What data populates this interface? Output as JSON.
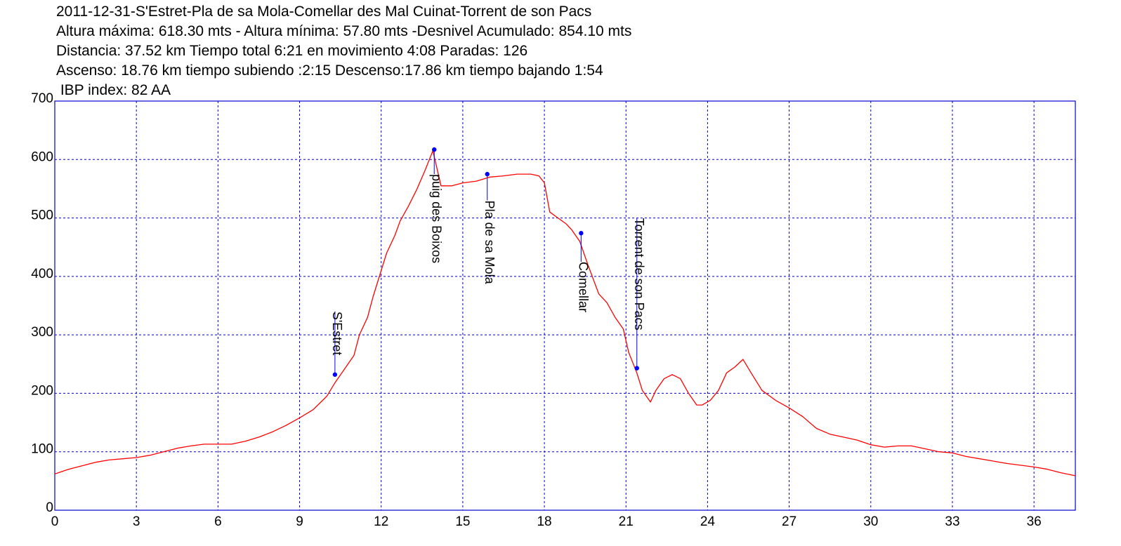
{
  "chart_data": {
    "type": "line",
    "header_lines": [
      "2011-12-31-S'Estret-Pla de sa Mola-Comellar des Mal Cuinat-Torrent de son Pacs",
      "Altura máxima: 618.30 mts - Altura mínima: 57.80 mts -Desnivel Acumulado: 854.10 mts",
      "Distancia: 37.52 km  Tiempo total 6:21  en movimiento 4:08 Paradas: 126",
      "Ascenso: 18.76 km  tiempo subiendo :2:15  Descenso:17.86 km tiempo bajando 1:54",
      " IBP index: 82 AA"
    ],
    "xlabel": "",
    "ylabel": "",
    "xlim": [
      0,
      37.52
    ],
    "ylim": [
      0,
      700
    ],
    "x_ticks": [
      0,
      3,
      6,
      9,
      12,
      15,
      18,
      21,
      24,
      27,
      30,
      33,
      36
    ],
    "y_ticks": [
      0,
      100,
      200,
      300,
      400,
      500,
      600,
      700
    ],
    "grid": true,
    "colors": {
      "line": "#ff0000",
      "frame": "#0000cc",
      "grid": "#0000cc",
      "marker": "#0000ff"
    },
    "series": [
      {
        "x": [
          0,
          0.5,
          1,
          1.5,
          2,
          2.5,
          3,
          3.5,
          4,
          4.5,
          5,
          5.5,
          6,
          6.5,
          7,
          7.5,
          8,
          8.5,
          9,
          9.5,
          10,
          10.3,
          10.6,
          11,
          11.2,
          11.5,
          11.7,
          12,
          12.2,
          12.5,
          12.7,
          13,
          13.3,
          13.6,
          13.9,
          14.2,
          14.6,
          15,
          15.5,
          16,
          16.5,
          17,
          17.5,
          17.8,
          18,
          18.2,
          18.5,
          18.8,
          19,
          19.3,
          19.6,
          20,
          20.3,
          20.6,
          20.9,
          21.1,
          21.4,
          21.6,
          21.9,
          22.1,
          22.4,
          22.7,
          23,
          23.3,
          23.6,
          23.8,
          24.1,
          24.4,
          24.7,
          25,
          25.3,
          25.6,
          26,
          26.5,
          27,
          27.5,
          28,
          28.5,
          29,
          29.5,
          30,
          30.5,
          31,
          31.5,
          32,
          32.5,
          33,
          33.5,
          34,
          34.5,
          35,
          35.5,
          36,
          36.5,
          37,
          37.52
        ],
        "y": [
          62,
          70,
          76,
          82,
          86,
          88,
          90,
          94,
          100,
          106,
          110,
          113,
          113,
          113,
          118,
          125,
          134,
          145,
          158,
          172,
          195,
          218,
          238,
          265,
          300,
          330,
          365,
          410,
          440,
          470,
          495,
          520,
          548,
          580,
          615,
          555,
          555,
          560,
          563,
          570,
          572,
          575,
          575,
          572,
          560,
          510,
          500,
          490,
          480,
          460,
          420,
          370,
          355,
          330,
          310,
          270,
          235,
          205,
          185,
          205,
          225,
          232,
          225,
          200,
          180,
          180,
          188,
          205,
          235,
          245,
          258,
          235,
          205,
          188,
          175,
          160,
          140,
          130,
          125,
          120,
          112,
          108,
          110,
          110,
          105,
          100,
          98,
          92,
          88,
          84,
          80,
          77,
          74,
          70,
          64,
          59
        ]
      }
    ],
    "annotations": [
      {
        "label": "S'Estret",
        "x": 10.3,
        "y": 232,
        "label_y": 340
      },
      {
        "label": "puig des Boixos",
        "x": 13.95,
        "y": 617,
        "label_y": 575
      },
      {
        "label": "Pla de sa Mola",
        "x": 15.9,
        "y": 575,
        "label_y": 530
      },
      {
        "label": "Comellar",
        "x": 19.35,
        "y": 474,
        "label_y": 425
      },
      {
        "label": "Torrent de son Pacs",
        "x": 21.4,
        "y": 243,
        "label_y": 500
      }
    ]
  }
}
